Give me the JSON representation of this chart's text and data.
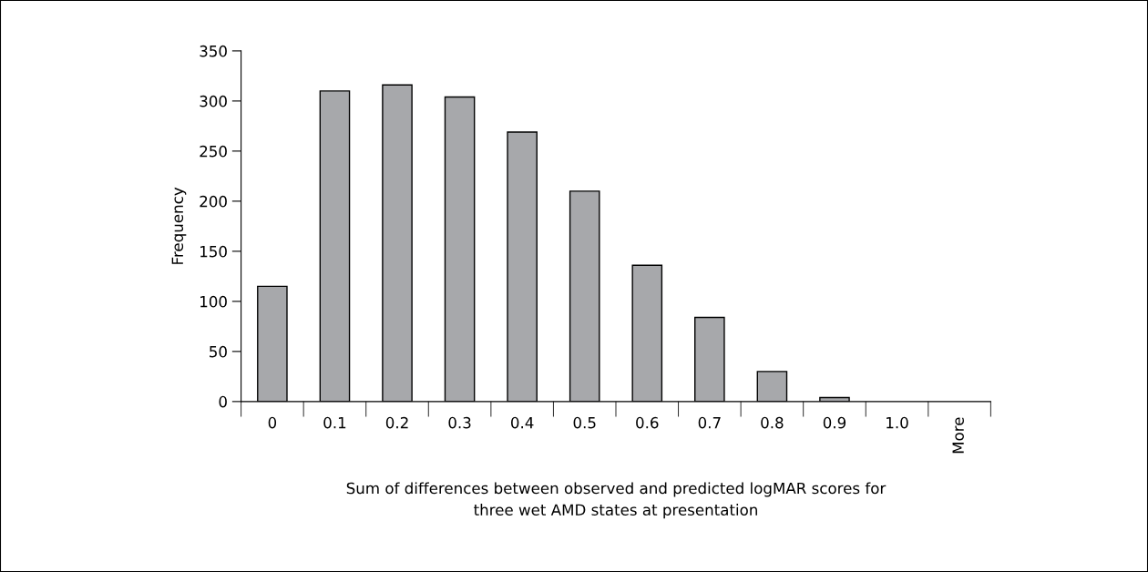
{
  "chart_data": {
    "type": "bar",
    "xlabel": "Sum of differences between observed and predicted logMAR scores for\nthree wet AMD states at presentation",
    "ylabel": "Frequency",
    "categories": [
      "0",
      "0.1",
      "0.2",
      "0.3",
      "0.4",
      "0.5",
      "0.6",
      "0.7",
      "0.8",
      "0.9",
      "1.0",
      "More"
    ],
    "values": [
      115,
      310,
      316,
      304,
      269,
      210,
      136,
      84,
      30,
      4,
      0,
      0
    ],
    "color": "#a7a8ab",
    "ylim": [
      0,
      350
    ],
    "yticks": [
      0,
      50,
      100,
      150,
      200,
      250,
      300,
      350
    ],
    "grid": false,
    "legend": false
  }
}
